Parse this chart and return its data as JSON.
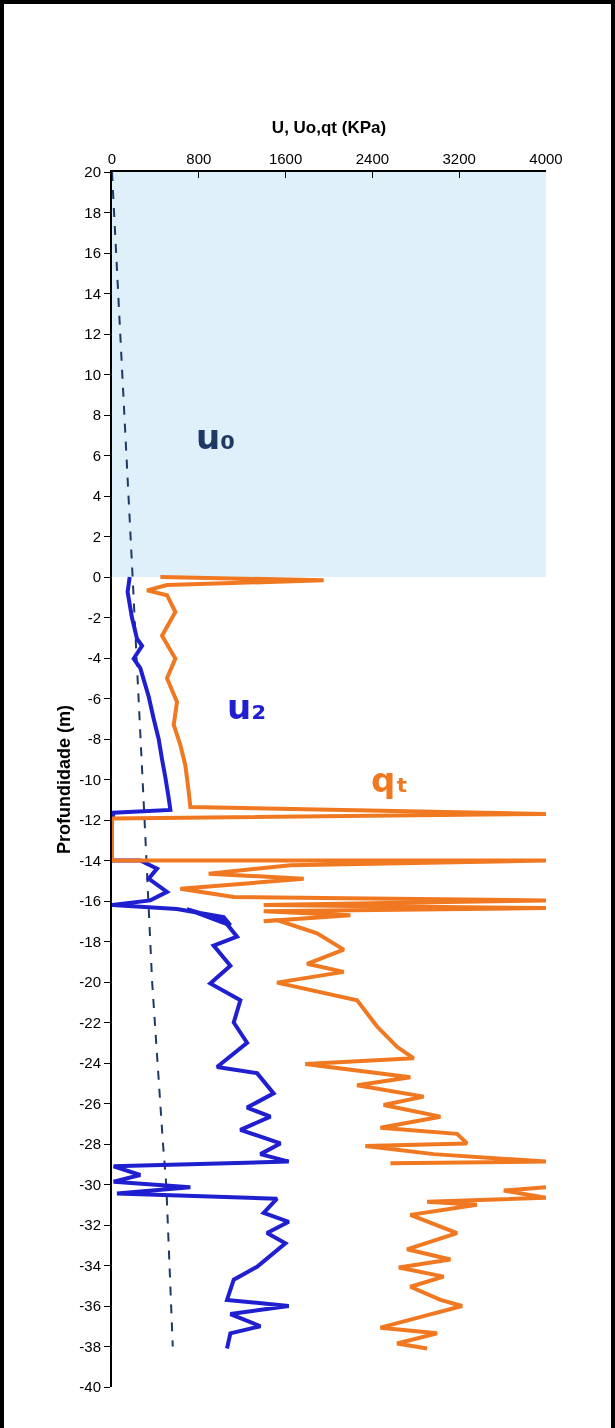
{
  "chart_data": {
    "type": "line",
    "xlabel": "U, Uo,qt (KPa)",
    "ylabel": "Profundidade (m)",
    "xlim": [
      0,
      4000
    ],
    "xticks": [
      0,
      800,
      1600,
      2400,
      3200,
      4000
    ],
    "ylim": [
      -40,
      20
    ],
    "yticks": [
      20,
      18,
      16,
      14,
      12,
      10,
      8,
      6,
      4,
      2,
      0,
      -2,
      -4,
      -6,
      -8,
      -10,
      -12,
      -14,
      -16,
      -18,
      -20,
      -22,
      -24,
      -26,
      -28,
      -30,
      -32,
      -34,
      -36,
      -38,
      -40
    ],
    "grid": false,
    "legend": false,
    "marker": "none",
    "bands": [
      {
        "axis": "y",
        "from": 0,
        "to": 20,
        "color": "#dff0fa"
      }
    ],
    "series": [
      {
        "name": "u₀",
        "color": "#1f3864",
        "line_style": "dashed",
        "x": [
          0,
          190,
          300,
          370,
          470,
          500,
          560
        ],
        "values": [
          20,
          0,
          -12,
          -20,
          -28,
          -30,
          -38
        ]
      },
      {
        "name": "u₂",
        "color": "#1f1fd0",
        "line_style": "solid",
        "x": [
          163,
          144,
          184,
          230,
          277,
          200,
          261,
          338,
          384,
          430,
          461,
          492,
          522,
          538,
          15,
          0,
          0,
          261,
          415,
          338,
          507,
          353,
          0,
          599,
          1029,
          1091,
          691,
          1029,
          1152,
          937,
          1091,
          906,
          1183,
          1122,
          1245,
          968,
          1337,
          1490,
          1245,
          1460,
          1183,
          1552,
          1368,
          1629,
          15,
          261,
          15,
          722,
          46,
          1521,
          1398,
          1629,
          1429,
          1598,
          1337,
          1122,
          1060,
          1629,
          1091,
          1368,
          1091,
          1060
        ],
        "values": [
          0,
          -0.74,
          -2,
          -3.05,
          -3.4,
          -4.03,
          -4.5,
          -5.9,
          -7,
          -8,
          -9,
          -9.9,
          -10.9,
          -11.5,
          -11.64,
          -12,
          -14,
          -14,
          -14.4,
          -14.9,
          -15.55,
          -15.97,
          -16.2,
          -16.4,
          -16.8,
          -17.2,
          -16.4,
          -16.94,
          -17.76,
          -18.2,
          -19.2,
          -20.07,
          -20.9,
          -22,
          -23,
          -24.2,
          -24.5,
          -25.5,
          -26.2,
          -26.65,
          -27.3,
          -27.97,
          -28.5,
          -28.87,
          -29.1,
          -29.53,
          -29.86,
          -30.14,
          -30.44,
          -30.7,
          -31.4,
          -31.84,
          -32.4,
          -32.9,
          -34.06,
          -34.7,
          -35.7,
          -36,
          -36.4,
          -37,
          -37.35,
          -38.1
        ]
      },
      {
        "name": "qₜ",
        "color": "#f07820",
        "line_style": "solid",
        "x": [
          446,
          1951,
          507,
          323,
          507,
          584,
          461,
          584,
          507,
          599,
          569,
          630,
          676,
          707,
          722,
          4000,
          0,
          0,
          4000,
          1644,
          891,
          1767,
          630,
          1122,
          4000,
          1398,
          4000,
          1398,
          2197,
          1398,
          1521,
          1890,
          2136,
          1798,
          2136,
          1521,
          2259,
          2443,
          2627,
          2781,
          1782,
          2750,
          2259,
          2873,
          2504,
          3027,
          2474,
          3180,
          3272,
          2335,
          2965,
          4000,
          2566,
          null,
          4000,
          3611,
          4000,
          2904,
          3364,
          2750,
          3180,
          2719,
          3119,
          2643,
          3057,
          2750,
          3027,
          3227,
          2873,
          2474,
          2996,
          2627,
          2904
        ],
        "values": [
          0,
          -0.16,
          -0.4,
          -0.66,
          -0.9,
          -1.73,
          -2.9,
          -4.03,
          -5,
          -6.17,
          -7.3,
          -8.3,
          -9.3,
          -10.6,
          -11.36,
          -11.7,
          -11.93,
          -14,
          -14,
          -14.24,
          -14.65,
          -14.9,
          -15.4,
          -15.8,
          -15.97,
          -16.2,
          -16.35,
          -16.5,
          -16.7,
          -17,
          -16.94,
          -17.6,
          -18.4,
          -19.1,
          -19.5,
          -20.03,
          -20.9,
          -22.2,
          -23.2,
          -23.77,
          -24.05,
          -24.7,
          -25.1,
          -25.66,
          -26.07,
          -26.65,
          -27.2,
          -27.5,
          -27.97,
          -28.1,
          -28.5,
          -28.87,
          -28.95,
          null,
          -30.14,
          -30.3,
          -30.65,
          -30.85,
          -31,
          -31.5,
          -32.4,
          -33.2,
          -33.7,
          -34.1,
          -34.55,
          -35.05,
          -35.7,
          -36,
          -36.5,
          -37.07,
          -37.35,
          -37.85,
          -38.1
        ]
      }
    ]
  }
}
